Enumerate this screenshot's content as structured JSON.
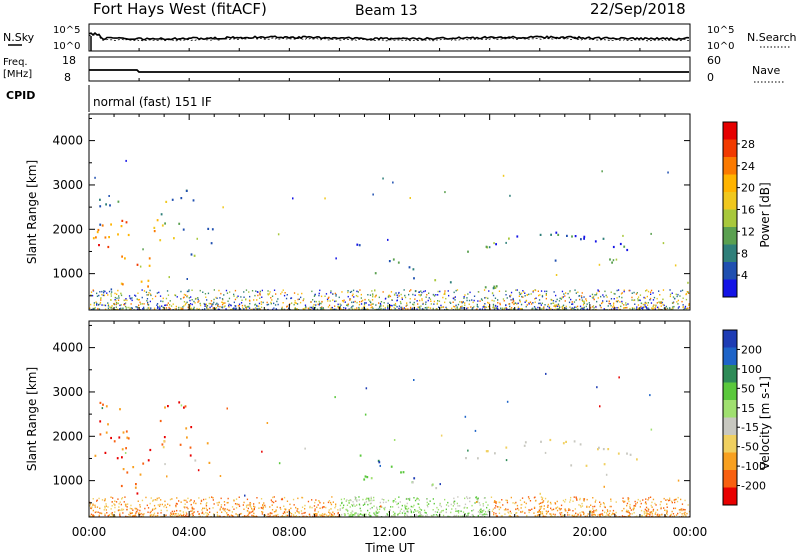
{
  "header": {
    "station": "Fort Hays West (fitACF)",
    "beam": "Beam 13",
    "date": "22/Sep/2018"
  },
  "strip_noise": {
    "left_label": "N.Sky",
    "left_ticks": [
      "10^5",
      "10^0"
    ],
    "right_label": "N.Search",
    "right_ticks": [
      "10^5",
      "10^0"
    ]
  },
  "strip_freq": {
    "left_label_1": "Freq.",
    "left_label_2": "[MHz]",
    "left_ticks": [
      "18",
      "8"
    ],
    "right_label": "Nave",
    "right_ticks": [
      "60",
      "0"
    ]
  },
  "cpid": {
    "label": "CPID",
    "mode": "normal (fast) 151 IF"
  },
  "xaxis": {
    "title": "Time UT",
    "ticks": [
      "00:00",
      "04:00",
      "08:00",
      "12:00",
      "16:00",
      "20:00",
      "00:00"
    ]
  },
  "colorbar_power": {
    "label": "Power [dB]",
    "ticks": [
      "28",
      "24",
      "20",
      "16",
      "12",
      "8",
      "4"
    ],
    "colors": [
      "#e60000",
      "#f23a00",
      "#fb7a00",
      "#ffb400",
      "#f0c81e",
      "#a8c83c",
      "#5aa050",
      "#2f7f7a",
      "#1f4fb0",
      "#1414e6"
    ]
  },
  "colorbar_velocity": {
    "label": "Velocity [m s-1]",
    "ticks": [
      "200",
      "100",
      "50",
      "15",
      "-15",
      "-50",
      "-100",
      "-200"
    ],
    "colors": [
      "#1e3cb4",
      "#1e64c8",
      "#2e8b57",
      "#5ac83c",
      "#a0e070",
      "#c8c8c0",
      "#f0d060",
      "#f8a020",
      "#f86010",
      "#e80000"
    ]
  },
  "chart_data": [
    {
      "type": "heatmap",
      "title": "Power",
      "ylabel": "Slant Range [km]",
      "xlabel": "",
      "x_ticks": [
        "00:00",
        "04:00",
        "08:00",
        "12:00",
        "16:00",
        "20:00",
        "00:00"
      ],
      "y_ticks": [
        1000,
        2000,
        3000,
        4000
      ],
      "ylim": [
        180,
        4600
      ],
      "colorbar": "Power [dB]"
    },
    {
      "type": "heatmap",
      "title": "Velocity",
      "ylabel": "Slant Range [km]",
      "xlabel": "Time UT",
      "x_ticks": [
        "00:00",
        "04:00",
        "08:00",
        "12:00",
        "16:00",
        "20:00",
        "00:00"
      ],
      "y_ticks": [
        1000,
        2000,
        3000,
        4000
      ],
      "ylim": [
        180,
        4600
      ],
      "colorbar": "Velocity [m s-1]"
    }
  ]
}
